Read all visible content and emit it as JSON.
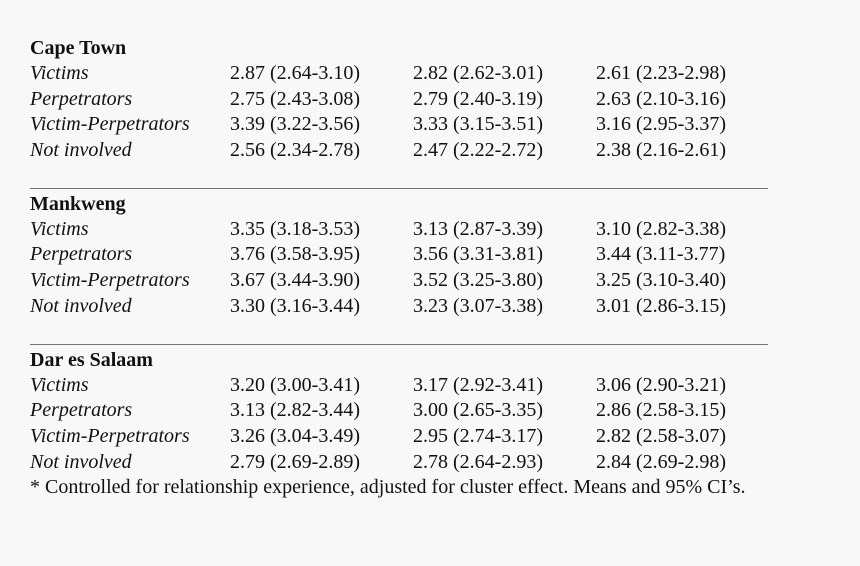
{
  "sections": [
    {
      "title": "Cape Town",
      "rows": [
        {
          "label": "Victims",
          "c1": "2.87 (2.64-3.10)",
          "c2": "2.82 (2.62-3.01)",
          "c3": "2.61 (2.23-2.98)"
        },
        {
          "label": "Perpetrators",
          "c1": "2.75 (2.43-3.08)",
          "c2": "2.79 (2.40-3.19)",
          "c3": "2.63 (2.10-3.16)"
        },
        {
          "label": "Victim-Perpetrators",
          "c1": "3.39 (3.22-3.56)",
          "c2": "3.33 (3.15-3.51)",
          "c3": "3.16 (2.95-3.37)"
        },
        {
          "label": "Not involved",
          "c1": "2.56 (2.34-2.78)",
          "c2": "2.47 (2.22-2.72)",
          "c3": "2.38 (2.16-2.61)"
        }
      ]
    },
    {
      "title": "Mankweng",
      "rows": [
        {
          "label": "Victims",
          "c1": "3.35 (3.18-3.53)",
          "c2": "3.13 (2.87-3.39)",
          "c3": "3.10 (2.82-3.38)"
        },
        {
          "label": "Perpetrators",
          "c1": "3.76 (3.58-3.95)",
          "c2": "3.56 (3.31-3.81)",
          "c3": "3.44 (3.11-3.77)"
        },
        {
          "label": "Victim-Perpetrators",
          "c1": "3.67 (3.44-3.90)",
          "c2": "3.52 (3.25-3.80)",
          "c3": "3.25 (3.10-3.40)"
        },
        {
          "label": "Not involved",
          "c1": "3.30 (3.16-3.44)",
          "c2": "3.23 (3.07-3.38)",
          "c3": "3.01 (2.86-3.15)"
        }
      ]
    },
    {
      "title": "Dar es Salaam",
      "rows": [
        {
          "label": "Victims",
          "c1": "3.20 (3.00-3.41)",
          "c2": "3.17 (2.92-3.41)",
          "c3": "3.06 (2.90-3.21)"
        },
        {
          "label": "Perpetrators",
          "c1": "3.13 (2.82-3.44)",
          "c2": "3.00 (2.65-3.35)",
          "c3": "2.86 (2.58-3.15)"
        },
        {
          "label": "Victim-Perpetrators",
          "c1": "3.26 (3.04-3.49)",
          "c2": "2.95 (2.74-3.17)",
          "c3": "2.82 (2.58-3.07)"
        },
        {
          "label": "Not involved",
          "c1": "2.79 (2.69-2.89)",
          "c2": "2.78 (2.64-2.93)",
          "c3": "2.84 (2.69-2.98)"
        }
      ]
    }
  ],
  "footnote": "* Controlled for relationship experience, adjusted for cluster effect. Means and 95% CI’s."
}
